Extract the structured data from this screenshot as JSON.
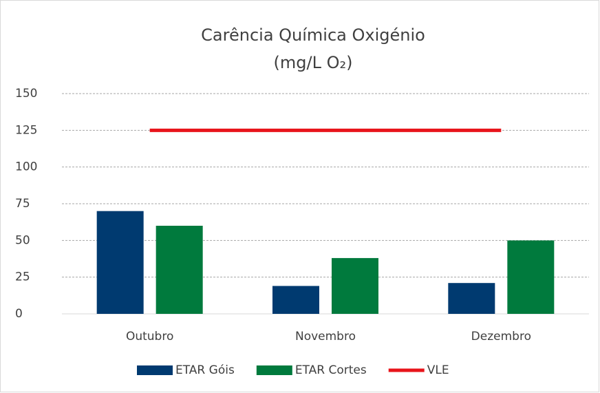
{
  "chart_data": {
    "type": "bar_line",
    "title": "Carência Química Oxigénio",
    "subtitle": "(mg/L O₂)",
    "categories": [
      "Outubro",
      "Novembro",
      "Dezembro"
    ],
    "series": [
      {
        "name": "ETAR Góis",
        "color": "#003a70",
        "type": "bar",
        "values": [
          70,
          19,
          21
        ]
      },
      {
        "name": "ETAR Cortes",
        "color": "#007a3d",
        "type": "bar",
        "values": [
          60,
          38,
          50
        ]
      },
      {
        "name": "VLE",
        "color": "#e8141b",
        "type": "line",
        "values": [
          125,
          125,
          125
        ]
      }
    ],
    "ylim": [
      0,
      150
    ],
    "yticks": [
      0,
      25,
      50,
      75,
      100,
      125,
      150
    ],
    "grid": true,
    "legend": "bottom"
  }
}
